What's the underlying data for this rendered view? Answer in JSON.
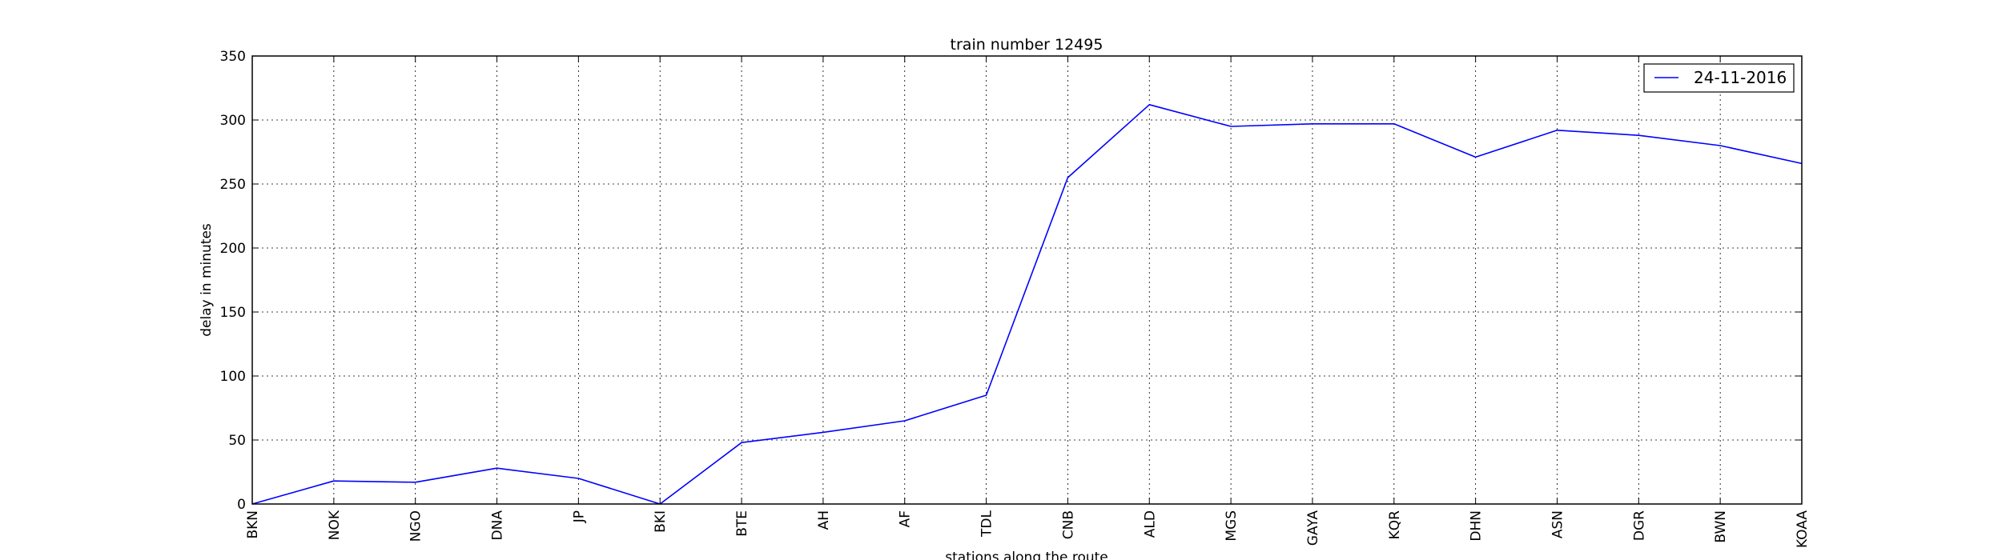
{
  "chart_data": {
    "type": "line",
    "title": "train number 12495",
    "xlabel": "stations along the route",
    "ylabel": "delay in minutes",
    "categories": [
      "BKN",
      "NOK",
      "NGO",
      "DNA",
      "JP",
      "BKI",
      "BTE",
      "AH",
      "AF",
      "TDL",
      "CNB",
      "ALD",
      "MGS",
      "GAYA",
      "KQR",
      "DHN",
      "ASN",
      "DGR",
      "BWN",
      "KOAA"
    ],
    "series": [
      {
        "name": "24-11-2016",
        "color": "#0000ff",
        "values": [
          0,
          18,
          17,
          28,
          20,
          0,
          48,
          56,
          65,
          85,
          255,
          312,
          295,
          297,
          297,
          271,
          292,
          288,
          280,
          266
        ]
      }
    ],
    "ylim": [
      0,
      350
    ],
    "yticks": [
      0,
      50,
      100,
      150,
      200,
      250,
      300,
      350
    ],
    "grid": true,
    "legend_position": "top-right"
  }
}
